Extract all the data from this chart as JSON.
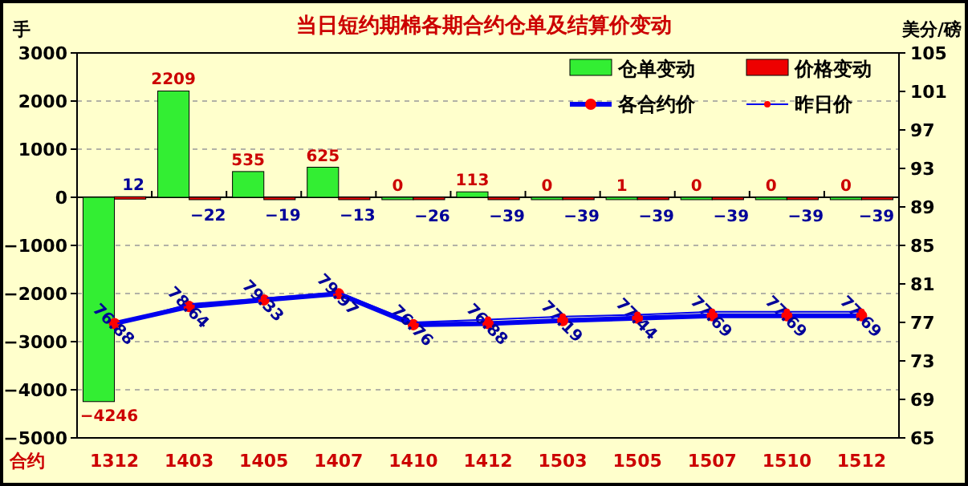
{
  "chart_data": {
    "type": "bar",
    "title": "当日短约期棉各期合约仓单及结算价变动",
    "ylabel": "手",
    "y2label": "美分/磅",
    "xlabel": "合约",
    "categories": [
      "1312",
      "1403",
      "1405",
      "1407",
      "1410",
      "1412",
      "1503",
      "1505",
      "1507",
      "1510",
      "1512"
    ],
    "series": [
      {
        "name": "仓单变动",
        "color": "#33ee33",
        "values": [
          -4246,
          2209,
          535,
          625,
          0,
          113,
          0,
          1,
          0,
          0,
          0
        ],
        "value_labels": [
          "−4246",
          "2209",
          "535",
          "625",
          "0",
          "113",
          "0",
          "1",
          "0",
          "0",
          "0"
        ]
      },
      {
        "name": "价格变动",
        "color": "#ee0000",
        "values": [
          12,
          -22,
          -19,
          -13,
          -26,
          -39,
          -39,
          -39,
          -39,
          -39,
          -39
        ],
        "value_labels": [
          "12",
          "−22",
          "−19",
          "−13",
          "−26",
          "−39",
          "−39",
          "−39",
          "−39",
          "−39",
          "−39"
        ]
      },
      {
        "name": "各合约价",
        "type": "line",
        "axis": "y2",
        "color": "#0000ee",
        "values": [
          76.88,
          78.64,
          79.33,
          79.97,
          76.76,
          76.88,
          77.19,
          77.44,
          77.69,
          77.69,
          77.69
        ],
        "value_labels": [
          "76.88",
          "78.64",
          "79.33",
          "79.97",
          "76.76",
          "76.88",
          "77.19",
          "77.44",
          "77.69",
          "77.69",
          "77.69"
        ]
      },
      {
        "name": "昨日价",
        "type": "line",
        "axis": "y2",
        "color": "#0000ee",
        "values": [
          76.8,
          78.9,
          79.5,
          80.1,
          77.0,
          77.3,
          77.6,
          77.8,
          78.1,
          78.1,
          78.1
        ]
      }
    ],
    "ylim": [
      -5000,
      3000
    ],
    "yticks": [
      -5000,
      -4000,
      -3000,
      -2000,
      -1000,
      0,
      1000,
      2000,
      3000
    ],
    "y2lim": [
      65,
      105
    ],
    "y2ticks": [
      65,
      69,
      73,
      77,
      81,
      85,
      89,
      93,
      97,
      101,
      105
    ],
    "grid": "y",
    "legend": "top right",
    "marker": "circle"
  }
}
